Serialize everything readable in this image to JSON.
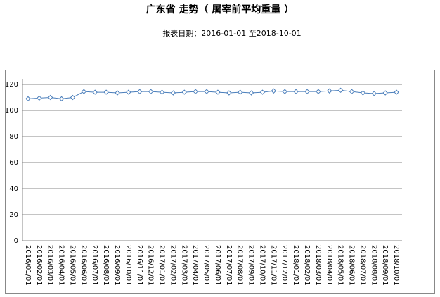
{
  "chart_data": {
    "type": "line",
    "title": "广东省 走势（ 屠宰前平均重量 ）",
    "subtitle": "报表日期：2016-01-01 至2018-10-01",
    "categories": [
      "2016/01/01",
      "2016/02/01",
      "2016/03/01",
      "2016/04/01",
      "2016/05/01",
      "2016/06/01",
      "2016/07/01",
      "2016/08/01",
      "2016/09/01",
      "2016/10/01",
      "2016/11/01",
      "2016/12/01",
      "2017/01/01",
      "2017/02/01",
      "2017/03/01",
      "2017/04/01",
      "2017/05/01",
      "2017/06/01",
      "2017/07/01",
      "2017/08/01",
      "2017/09/01",
      "2017/10/01",
      "2017/11/01",
      "2017/12/01",
      "2018/01/01",
      "2018/02/01",
      "2018/03/01",
      "2018/04/01",
      "2018/05/01",
      "2018/06/01",
      "2018/07/01",
      "2018/08/01",
      "2018/09/01",
      "2018/10/01"
    ],
    "values": [
      109,
      109.5,
      110,
      109,
      110,
      114.5,
      114,
      114,
      113.5,
      114,
      114.5,
      114.5,
      114,
      113.5,
      114,
      114.5,
      114.5,
      114,
      113.5,
      114,
      113.5,
      114,
      115,
      114.5,
      114.5,
      114.5,
      114.5,
      115,
      115.5,
      114.5,
      113.5,
      113,
      113.5,
      114
    ],
    "color": "#4a7ebb",
    "ylim": [
      0,
      120
    ],
    "yticks": [
      0,
      20,
      40,
      60,
      80,
      100,
      120
    ],
    "grid": true
  }
}
